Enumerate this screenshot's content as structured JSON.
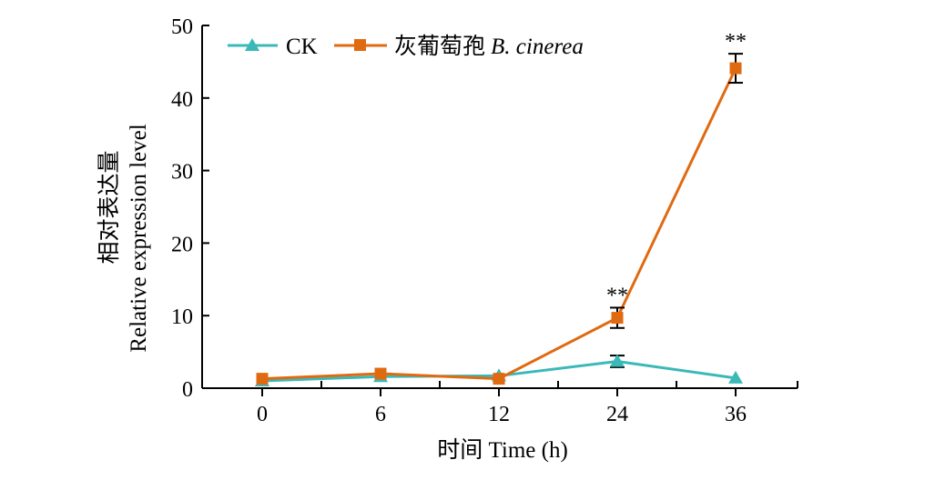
{
  "chart_data": {
    "type": "line",
    "xlabel": "时间 Time (h)",
    "ylabel_cn": "相对表达量",
    "ylabel_en": "Relative expression level",
    "x": [
      0,
      6,
      12,
      24,
      36
    ],
    "x_tick_labels": [
      "0",
      "6",
      "12",
      "24",
      "36"
    ],
    "ylim": [
      0,
      50
    ],
    "y_ticks": [
      0,
      10,
      20,
      30,
      40,
      50
    ],
    "y_tick_labels": [
      "0",
      "10",
      "20",
      "30",
      "40",
      "50"
    ],
    "grid": false,
    "legend_position": "top",
    "series": [
      {
        "name": "CK",
        "color": "#3bb8b8",
        "marker": "triangle",
        "values": [
          1.0,
          1.6,
          1.7,
          3.7,
          1.4
        ],
        "errors": [
          0.2,
          0.3,
          0.2,
          0.8,
          0.3
        ]
      },
      {
        "name_cn": "灰葡萄孢",
        "name_en": "B. cinerea",
        "color": "#e06a10",
        "marker": "square",
        "values": [
          1.3,
          2.0,
          1.3,
          9.7,
          44.1
        ],
        "errors": [
          0.2,
          0.3,
          0.2,
          1.4,
          2.0
        ],
        "annotations": [
          "",
          "",
          "",
          "**",
          "**"
        ]
      }
    ]
  }
}
